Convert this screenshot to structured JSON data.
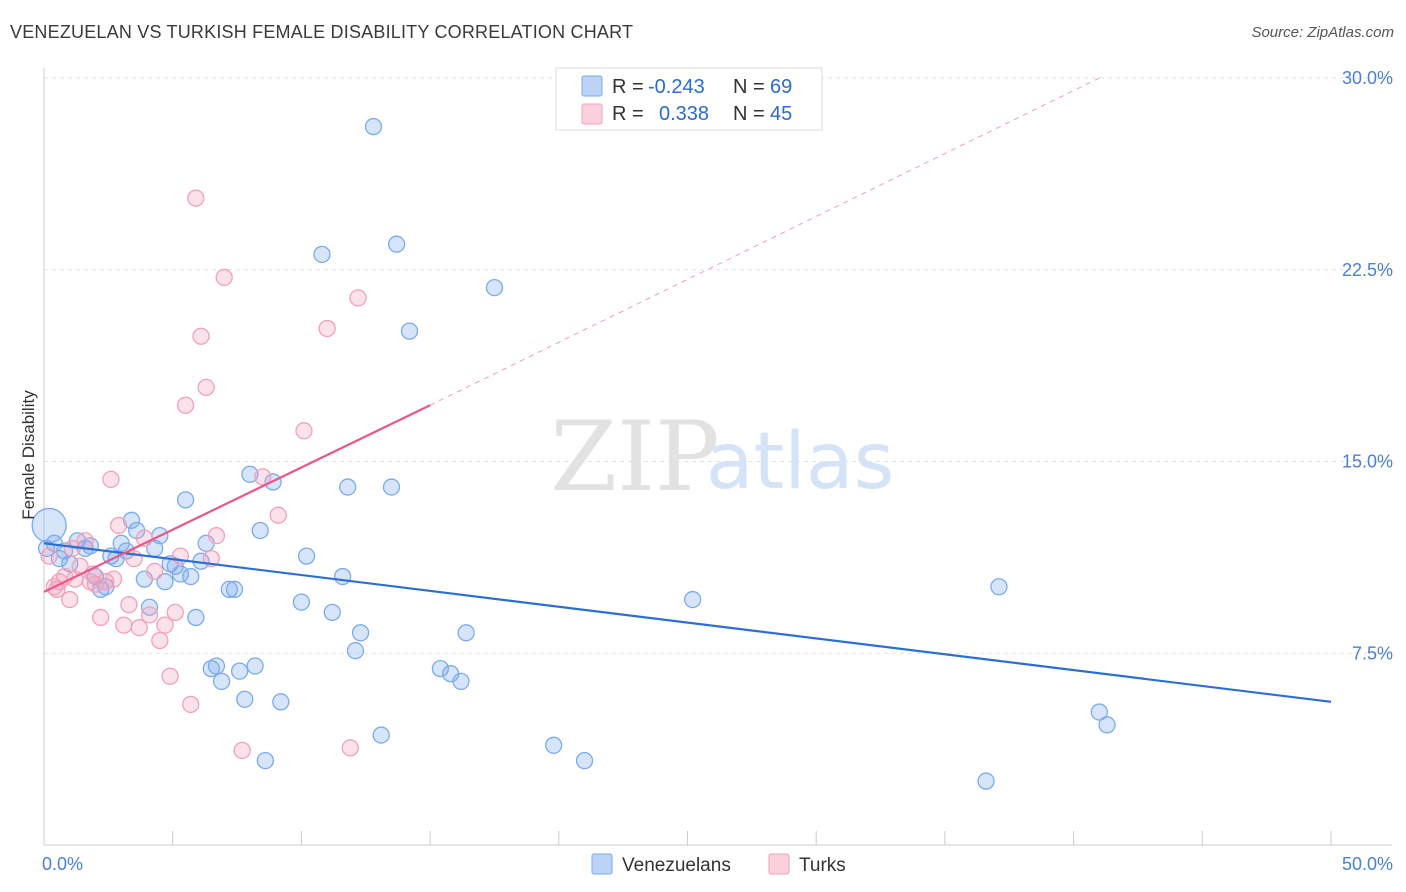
{
  "header": {
    "title": "VENEZUELAN VS TURKISH FEMALE DISABILITY CORRELATION CHART",
    "source": "Source: ZipAtlas.com"
  },
  "watermark": {
    "zip": "ZIP",
    "atlas": "atlas"
  },
  "legend": {
    "rows": [
      {
        "r_label": "R =",
        "r_value": "-0.243",
        "n_label": "N =",
        "n_value": "69",
        "color": "#7aaaf0"
      },
      {
        "r_label": "R =",
        "r_value": "0.338",
        "n_label": "N =",
        "n_value": "45",
        "color": "#f2a0b8"
      }
    ]
  },
  "bottom_legend": [
    {
      "label": "Venezuelans",
      "color": "#7aaaf0"
    },
    {
      "label": "Turks",
      "color": "#f2a0b8"
    }
  ],
  "chart_data": {
    "type": "scatter",
    "title": "VENEZUELAN VS TURKISH FEMALE DISABILITY CORRELATION CHART",
    "xlabel": "",
    "ylabel": "Female Disability",
    "xlim": [
      0,
      50
    ],
    "ylim": [
      0,
      30
    ],
    "x_tick_labels": [
      "0.0%",
      "50.0%"
    ],
    "y_ticks": [
      7.5,
      15.0,
      22.5,
      30.0
    ],
    "y_tick_labels": [
      "7.5%",
      "15.0%",
      "22.5%",
      "30.0%"
    ],
    "grid": true,
    "legend_position": "top-center",
    "series": [
      {
        "name": "Venezuelans",
        "color": "#7aaaf0",
        "line_color": "#2b6fd6",
        "trend": {
          "x": [
            0,
            50
          ],
          "y": [
            11.8,
            5.6
          ],
          "dashed_from": null
        },
        "points": [
          [
            0.2,
            12.5
          ],
          [
            0.4,
            11.8
          ],
          [
            0.6,
            11.2
          ],
          [
            0.8,
            11.5
          ],
          [
            1.0,
            11.0
          ],
          [
            1.3,
            11.9
          ],
          [
            1.6,
            11.6
          ],
          [
            1.8,
            11.7
          ],
          [
            2.0,
            10.5
          ],
          [
            2.2,
            10.0
          ],
          [
            2.4,
            10.1
          ],
          [
            2.6,
            11.3
          ],
          [
            2.8,
            11.2
          ],
          [
            3.0,
            11.8
          ],
          [
            3.2,
            11.5
          ],
          [
            3.4,
            12.7
          ],
          [
            3.6,
            12.3
          ],
          [
            3.9,
            10.4
          ],
          [
            4.1,
            9.3
          ],
          [
            4.3,
            11.6
          ],
          [
            4.5,
            12.1
          ],
          [
            4.7,
            10.3
          ],
          [
            4.9,
            11.0
          ],
          [
            5.1,
            10.9
          ],
          [
            5.3,
            10.6
          ],
          [
            5.5,
            13.5
          ],
          [
            5.7,
            10.5
          ],
          [
            5.9,
            8.9
          ],
          [
            6.1,
            11.1
          ],
          [
            6.3,
            11.8
          ],
          [
            6.5,
            6.9
          ],
          [
            6.7,
            7.0
          ],
          [
            6.9,
            6.4
          ],
          [
            7.2,
            10.0
          ],
          [
            7.4,
            10.0
          ],
          [
            7.6,
            6.8
          ],
          [
            7.8,
            5.7
          ],
          [
            8.0,
            14.5
          ],
          [
            8.2,
            7.0
          ],
          [
            8.4,
            12.3
          ],
          [
            8.6,
            3.3
          ],
          [
            8.9,
            14.2
          ],
          [
            9.2,
            5.6
          ],
          [
            10.0,
            9.5
          ],
          [
            10.2,
            11.3
          ],
          [
            10.8,
            23.1
          ],
          [
            11.2,
            9.1
          ],
          [
            11.6,
            10.5
          ],
          [
            11.8,
            14.0
          ],
          [
            12.1,
            7.6
          ],
          [
            12.3,
            8.3
          ],
          [
            12.8,
            28.1
          ],
          [
            13.1,
            4.3
          ],
          [
            13.5,
            14.0
          ],
          [
            13.7,
            23.5
          ],
          [
            14.2,
            20.1
          ],
          [
            15.4,
            6.9
          ],
          [
            15.8,
            6.7
          ],
          [
            16.2,
            6.4
          ],
          [
            16.4,
            8.3
          ],
          [
            17.5,
            21.8
          ],
          [
            19.8,
            3.9
          ],
          [
            21.0,
            3.3
          ],
          [
            25.2,
            9.6
          ],
          [
            36.6,
            2.5
          ],
          [
            37.1,
            10.1
          ],
          [
            41.0,
            5.2
          ],
          [
            41.3,
            4.7
          ],
          [
            0.1,
            11.6
          ]
        ]
      },
      {
        "name": "Turks",
        "color": "#f2a0b8",
        "line_color": "#e8588a",
        "trend": {
          "x": [
            0,
            15,
            41
          ],
          "y": [
            9.9,
            17.2,
            30.0
          ],
          "dashed_from": 15
        },
        "points": [
          [
            0.2,
            11.3
          ],
          [
            0.4,
            10.1
          ],
          [
            0.6,
            10.3
          ],
          [
            0.8,
            10.5
          ],
          [
            1.0,
            9.6
          ],
          [
            1.2,
            10.4
          ],
          [
            1.4,
            10.9
          ],
          [
            1.6,
            11.9
          ],
          [
            1.8,
            10.3
          ],
          [
            2.0,
            10.2
          ],
          [
            2.2,
            8.9
          ],
          [
            2.4,
            10.3
          ],
          [
            2.6,
            14.3
          ],
          [
            2.9,
            12.5
          ],
          [
            3.1,
            8.6
          ],
          [
            3.3,
            9.4
          ],
          [
            3.5,
            11.2
          ],
          [
            3.7,
            8.5
          ],
          [
            3.9,
            12.0
          ],
          [
            4.1,
            9.0
          ],
          [
            4.3,
            10.7
          ],
          [
            4.5,
            8.0
          ],
          [
            4.7,
            8.6
          ],
          [
            4.9,
            6.6
          ],
          [
            5.1,
            9.1
          ],
          [
            5.3,
            11.3
          ],
          [
            5.5,
            17.2
          ],
          [
            5.7,
            5.5
          ],
          [
            5.9,
            25.3
          ],
          [
            6.1,
            19.9
          ],
          [
            6.3,
            17.9
          ],
          [
            6.5,
            11.2
          ],
          [
            6.7,
            12.1
          ],
          [
            7.0,
            22.2
          ],
          [
            7.7,
            3.7
          ],
          [
            8.5,
            14.4
          ],
          [
            9.1,
            12.9
          ],
          [
            10.1,
            16.2
          ],
          [
            11.0,
            20.2
          ],
          [
            11.9,
            3.8
          ],
          [
            12.2,
            21.4
          ],
          [
            0.5,
            10.0
          ],
          [
            1.1,
            11.6
          ],
          [
            2.7,
            10.4
          ],
          [
            1.9,
            10.6
          ]
        ]
      }
    ]
  }
}
